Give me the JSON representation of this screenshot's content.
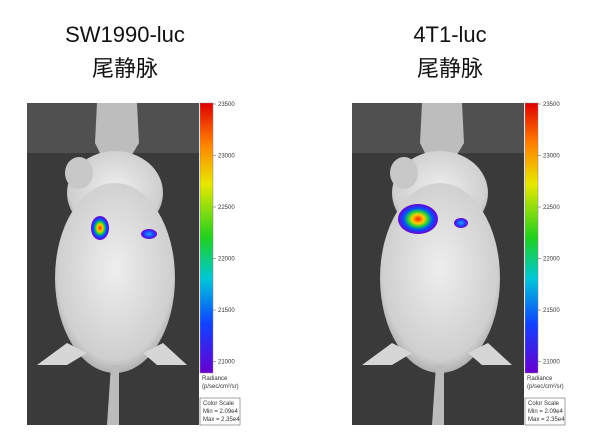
{
  "panels": [
    {
      "title": "SW1990-luc",
      "subtitle": "尾静脉",
      "scale_labels": [
        23500,
        23000,
        22500,
        22000,
        21500,
        21000
      ],
      "unit_title": "Radiance",
      "unit": "(p/sec/cm²/sr)",
      "legend": {
        "title": "Color Scale",
        "min": "Min = 2.09e4",
        "max": "Max = 2.35e4"
      }
    },
    {
      "title": "4T1-luc",
      "subtitle": "尾静脉",
      "scale_labels": [
        23500,
        23000,
        22500,
        22000,
        21500,
        21000
      ],
      "unit_title": "Radiance",
      "unit": "(p/sec/cm²/sr)",
      "legend": {
        "title": "Color Scale",
        "min": "Min = 2.09e4",
        "max": "Max = 2.35e4"
      }
    }
  ]
}
